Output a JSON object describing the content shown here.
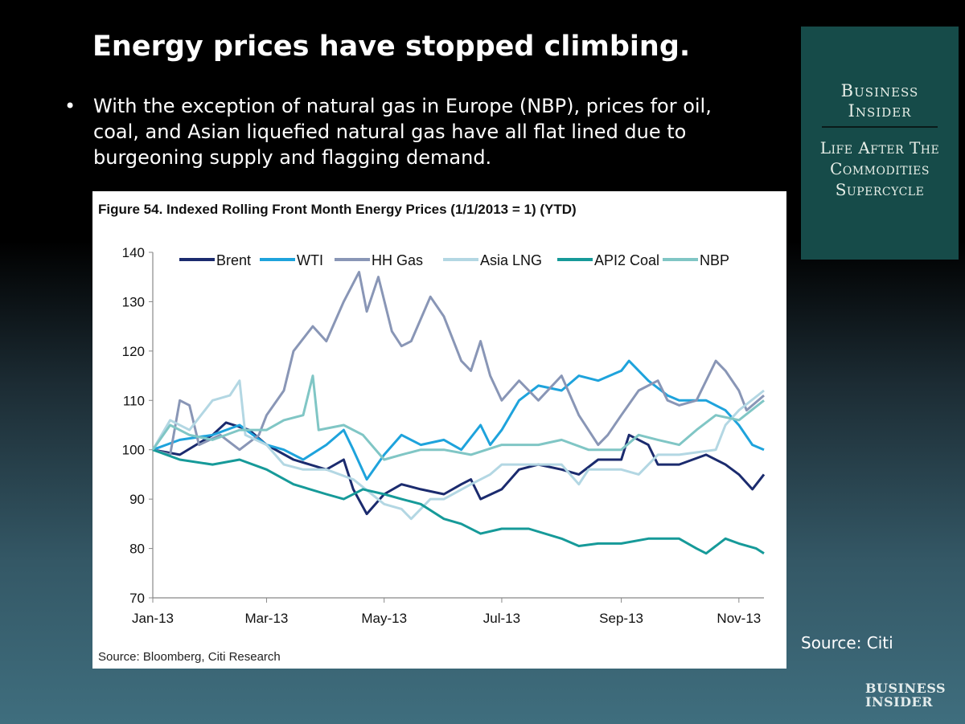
{
  "slide": {
    "title": "Energy prices have stopped climbing.",
    "bullet_marker": "•",
    "bullet_text": "With the exception of natural gas in Europe (NBP), prices for oil, coal, and Asian liquefied natural gas have all flat lined due to burgeoning supply and flagging demand.",
    "source": "Source: Citi",
    "logo_text": "Business Insider"
  },
  "panel": {
    "brand_line1": "Business",
    "brand_line2": "Insider",
    "subtitle_line1": "Life After The",
    "subtitle_line2": "Commodities",
    "subtitle_line3": "Supercycle",
    "background": "#164b49"
  },
  "chart_data": {
    "type": "line",
    "title": "Figure 54. Indexed Rolling Front Month Energy Prices (1/1/2013 = 1) (YTD)",
    "source_note": "Source: Bloomberg, Citi Research",
    "xlabel": "",
    "ylabel": "",
    "xlim": [
      "2013-01-01",
      "2013-11-14"
    ],
    "ylim": [
      70,
      140
    ],
    "yticks": [
      70,
      80,
      90,
      100,
      110,
      120,
      130,
      140
    ],
    "xticks": [
      {
        "date": "2013-01-01",
        "label": "Jan-13"
      },
      {
        "date": "2013-03-01",
        "label": "Mar-13"
      },
      {
        "date": "2013-05-01",
        "label": "May-13"
      },
      {
        "date": "2013-07-01",
        "label": "Jul-13"
      },
      {
        "date": "2013-09-01",
        "label": "Sep-13"
      },
      {
        "date": "2013-11-01",
        "label": "Nov-13"
      }
    ],
    "grid": false,
    "legend": "top",
    "series": [
      {
        "name": "Brent",
        "color": "#1b2b6e",
        "points": [
          [
            "2013-01-01",
            100
          ],
          [
            "2013-01-15",
            99
          ],
          [
            "2013-02-01",
            103
          ],
          [
            "2013-02-08",
            105.5
          ],
          [
            "2013-02-20",
            104
          ],
          [
            "2013-03-01",
            101
          ],
          [
            "2013-03-15",
            98
          ],
          [
            "2013-04-01",
            96
          ],
          [
            "2013-04-10",
            98
          ],
          [
            "2013-04-15",
            92
          ],
          [
            "2013-04-22",
            87
          ],
          [
            "2013-05-01",
            91
          ],
          [
            "2013-05-10",
            93
          ],
          [
            "2013-05-20",
            92
          ],
          [
            "2013-06-01",
            91
          ],
          [
            "2013-06-10",
            93
          ],
          [
            "2013-06-15",
            94
          ],
          [
            "2013-06-20",
            90
          ],
          [
            "2013-07-01",
            92
          ],
          [
            "2013-07-10",
            96
          ],
          [
            "2013-07-20",
            97
          ],
          [
            "2013-08-01",
            96
          ],
          [
            "2013-08-10",
            95
          ],
          [
            "2013-08-20",
            98
          ],
          [
            "2013-09-01",
            98
          ],
          [
            "2013-09-05",
            103
          ],
          [
            "2013-09-15",
            101
          ],
          [
            "2013-09-20",
            97
          ],
          [
            "2013-10-01",
            97
          ],
          [
            "2013-10-15",
            99
          ],
          [
            "2013-10-25",
            97
          ],
          [
            "2013-11-01",
            95
          ],
          [
            "2013-11-08",
            92
          ],
          [
            "2013-11-14",
            95
          ]
        ]
      },
      {
        "name": "WTI",
        "color": "#1ea3dc",
        "points": [
          [
            "2013-01-01",
            100
          ],
          [
            "2013-01-15",
            102
          ],
          [
            "2013-02-01",
            103
          ],
          [
            "2013-02-15",
            105
          ],
          [
            "2013-03-01",
            101
          ],
          [
            "2013-03-10",
            100
          ],
          [
            "2013-03-20",
            98
          ],
          [
            "2013-04-01",
            101
          ],
          [
            "2013-04-10",
            104
          ],
          [
            "2013-04-15",
            100
          ],
          [
            "2013-04-22",
            94
          ],
          [
            "2013-05-01",
            99
          ],
          [
            "2013-05-10",
            103
          ],
          [
            "2013-05-20",
            101
          ],
          [
            "2013-06-01",
            102
          ],
          [
            "2013-06-10",
            100
          ],
          [
            "2013-06-20",
            105
          ],
          [
            "2013-06-25",
            101
          ],
          [
            "2013-07-01",
            104
          ],
          [
            "2013-07-10",
            110
          ],
          [
            "2013-07-20",
            113
          ],
          [
            "2013-08-01",
            112
          ],
          [
            "2013-08-10",
            115
          ],
          [
            "2013-08-20",
            114
          ],
          [
            "2013-09-01",
            116
          ],
          [
            "2013-09-05",
            118
          ],
          [
            "2013-09-15",
            114
          ],
          [
            "2013-09-25",
            111
          ],
          [
            "2013-10-01",
            110
          ],
          [
            "2013-10-15",
            110
          ],
          [
            "2013-10-25",
            108
          ],
          [
            "2013-11-01",
            105
          ],
          [
            "2013-11-08",
            101
          ],
          [
            "2013-11-14",
            100
          ]
        ]
      },
      {
        "name": "HH Gas",
        "color": "#8996b6",
        "points": [
          [
            "2013-01-01",
            100
          ],
          [
            "2013-01-10",
            99
          ],
          [
            "2013-01-15",
            110
          ],
          [
            "2013-01-20",
            109
          ],
          [
            "2013-01-25",
            101
          ],
          [
            "2013-02-05",
            103
          ],
          [
            "2013-02-15",
            100
          ],
          [
            "2013-02-25",
            103
          ],
          [
            "2013-03-01",
            107
          ],
          [
            "2013-03-10",
            112
          ],
          [
            "2013-03-15",
            120
          ],
          [
            "2013-03-25",
            125
          ],
          [
            "2013-04-01",
            122
          ],
          [
            "2013-04-10",
            130
          ],
          [
            "2013-04-18",
            136
          ],
          [
            "2013-04-22",
            128
          ],
          [
            "2013-04-28",
            135
          ],
          [
            "2013-05-05",
            124
          ],
          [
            "2013-05-10",
            121
          ],
          [
            "2013-05-15",
            122
          ],
          [
            "2013-05-25",
            131
          ],
          [
            "2013-06-01",
            127
          ],
          [
            "2013-06-10",
            118
          ],
          [
            "2013-06-15",
            116
          ],
          [
            "2013-06-20",
            122
          ],
          [
            "2013-06-25",
            115
          ],
          [
            "2013-07-01",
            110
          ],
          [
            "2013-07-10",
            114
          ],
          [
            "2013-07-20",
            110
          ],
          [
            "2013-08-01",
            115
          ],
          [
            "2013-08-10",
            107
          ],
          [
            "2013-08-20",
            101
          ],
          [
            "2013-08-25",
            103
          ],
          [
            "2013-09-01",
            107
          ],
          [
            "2013-09-10",
            112
          ],
          [
            "2013-09-20",
            114
          ],
          [
            "2013-09-25",
            110
          ],
          [
            "2013-10-01",
            109
          ],
          [
            "2013-10-10",
            110
          ],
          [
            "2013-10-20",
            118
          ],
          [
            "2013-10-25",
            116
          ],
          [
            "2013-11-01",
            112
          ],
          [
            "2013-11-05",
            108
          ],
          [
            "2013-11-14",
            111
          ]
        ]
      },
      {
        "name": "Asia LNG",
        "color": "#b3d7e3",
        "points": [
          [
            "2013-01-01",
            100
          ],
          [
            "2013-01-10",
            106
          ],
          [
            "2013-01-20",
            104
          ],
          [
            "2013-02-01",
            110
          ],
          [
            "2013-02-10",
            111
          ],
          [
            "2013-02-15",
            114
          ],
          [
            "2013-02-18",
            103
          ],
          [
            "2013-03-01",
            101
          ],
          [
            "2013-03-10",
            97
          ],
          [
            "2013-03-20",
            96
          ],
          [
            "2013-04-01",
            96
          ],
          [
            "2013-04-15",
            94
          ],
          [
            "2013-05-01",
            89
          ],
          [
            "2013-05-10",
            88
          ],
          [
            "2013-05-15",
            86
          ],
          [
            "2013-05-25",
            90
          ],
          [
            "2013-06-01",
            90
          ],
          [
            "2013-06-15",
            93
          ],
          [
            "2013-06-25",
            95
          ],
          [
            "2013-07-01",
            97
          ],
          [
            "2013-07-20",
            97
          ],
          [
            "2013-08-01",
            97
          ],
          [
            "2013-08-10",
            93
          ],
          [
            "2013-08-15",
            96
          ],
          [
            "2013-09-01",
            96
          ],
          [
            "2013-09-10",
            95
          ],
          [
            "2013-09-20",
            99
          ],
          [
            "2013-10-01",
            99
          ],
          [
            "2013-10-20",
            100
          ],
          [
            "2013-10-25",
            105
          ],
          [
            "2013-11-01",
            108
          ],
          [
            "2013-11-14",
            112
          ]
        ]
      },
      {
        "name": "API2 Coal",
        "color": "#169a99",
        "points": [
          [
            "2013-01-01",
            100
          ],
          [
            "2013-01-15",
            98
          ],
          [
            "2013-02-01",
            97
          ],
          [
            "2013-02-15",
            98
          ],
          [
            "2013-03-01",
            96
          ],
          [
            "2013-03-15",
            93
          ],
          [
            "2013-04-01",
            91
          ],
          [
            "2013-04-10",
            90
          ],
          [
            "2013-04-20",
            92
          ],
          [
            "2013-05-01",
            91
          ],
          [
            "2013-05-10",
            90
          ],
          [
            "2013-05-20",
            89
          ],
          [
            "2013-06-01",
            86
          ],
          [
            "2013-06-10",
            85
          ],
          [
            "2013-06-20",
            83
          ],
          [
            "2013-07-01",
            84
          ],
          [
            "2013-07-15",
            84
          ],
          [
            "2013-08-01",
            82
          ],
          [
            "2013-08-10",
            80.5
          ],
          [
            "2013-08-20",
            81
          ],
          [
            "2013-09-01",
            81
          ],
          [
            "2013-09-15",
            82
          ],
          [
            "2013-10-01",
            82
          ],
          [
            "2013-10-10",
            80
          ],
          [
            "2013-10-15",
            79
          ],
          [
            "2013-10-25",
            82
          ],
          [
            "2013-11-01",
            81
          ],
          [
            "2013-11-10",
            80
          ],
          [
            "2013-11-14",
            79
          ]
        ]
      },
      {
        "name": "NBP",
        "color": "#80c6c5",
        "points": [
          [
            "2013-01-01",
            100
          ],
          [
            "2013-01-10",
            105
          ],
          [
            "2013-01-20",
            103
          ],
          [
            "2013-02-01",
            102
          ],
          [
            "2013-02-15",
            104
          ],
          [
            "2013-03-01",
            104
          ],
          [
            "2013-03-10",
            106
          ],
          [
            "2013-03-20",
            107
          ],
          [
            "2013-03-25",
            115
          ],
          [
            "2013-03-28",
            104
          ],
          [
            "2013-04-10",
            105
          ],
          [
            "2013-04-20",
            103
          ],
          [
            "2013-05-01",
            98
          ],
          [
            "2013-05-10",
            99
          ],
          [
            "2013-05-20",
            100
          ],
          [
            "2013-06-01",
            100
          ],
          [
            "2013-06-15",
            99
          ],
          [
            "2013-07-01",
            101
          ],
          [
            "2013-07-20",
            101
          ],
          [
            "2013-08-01",
            102
          ],
          [
            "2013-08-15",
            100
          ],
          [
            "2013-09-01",
            100
          ],
          [
            "2013-09-10",
            103
          ],
          [
            "2013-09-20",
            102
          ],
          [
            "2013-10-01",
            101
          ],
          [
            "2013-10-10",
            104
          ],
          [
            "2013-10-20",
            107
          ],
          [
            "2013-11-01",
            106
          ],
          [
            "2013-11-14",
            110
          ]
        ]
      }
    ]
  }
}
